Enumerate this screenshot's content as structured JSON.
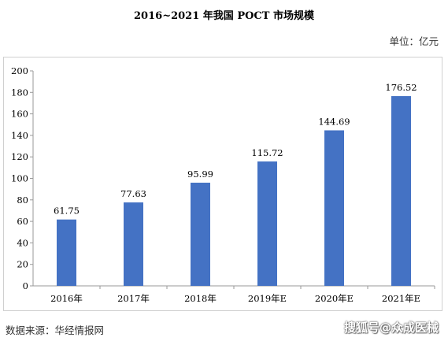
{
  "chart_data": {
    "type": "bar",
    "title": "2016~2021 年我国 POCT 市场规模",
    "unit_label": "单位：亿元",
    "categories": [
      "2016年",
      "2017年",
      "2018年",
      "2019年E",
      "2020年E",
      "2021年E"
    ],
    "values": [
      61.75,
      77.63,
      95.99,
      115.72,
      144.69,
      176.52
    ],
    "value_labels": [
      "61.75",
      "77.63",
      "95.99",
      "115.72",
      "144.69",
      "176.52"
    ],
    "ylim": [
      0,
      200
    ],
    "yticks": [
      "0",
      "20",
      "40",
      "60",
      "80",
      "100",
      "120",
      "140",
      "160",
      "180",
      "200"
    ],
    "bar_color": "#4472C4",
    "grid": false,
    "legend": "none"
  },
  "footer": {
    "source": "数据来源：华经情报网",
    "watermark": "搜狐号@众成医械"
  }
}
